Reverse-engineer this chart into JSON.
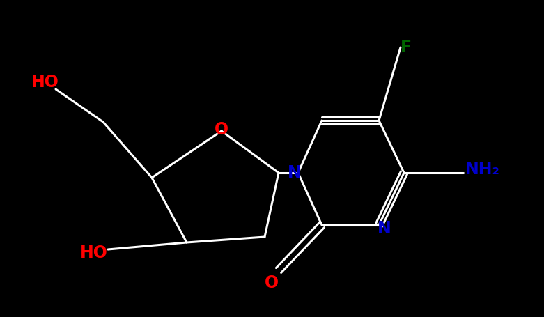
{
  "background_color": "#000000",
  "bond_color": "#ffffff",
  "atom_colors": {
    "O": "#ff0000",
    "N": "#0000cc",
    "F": "#006400",
    "NH2": "#0000cc",
    "HO": "#ff0000"
  },
  "figsize": [
    7.81,
    4.55
  ],
  "dpi": 100
}
